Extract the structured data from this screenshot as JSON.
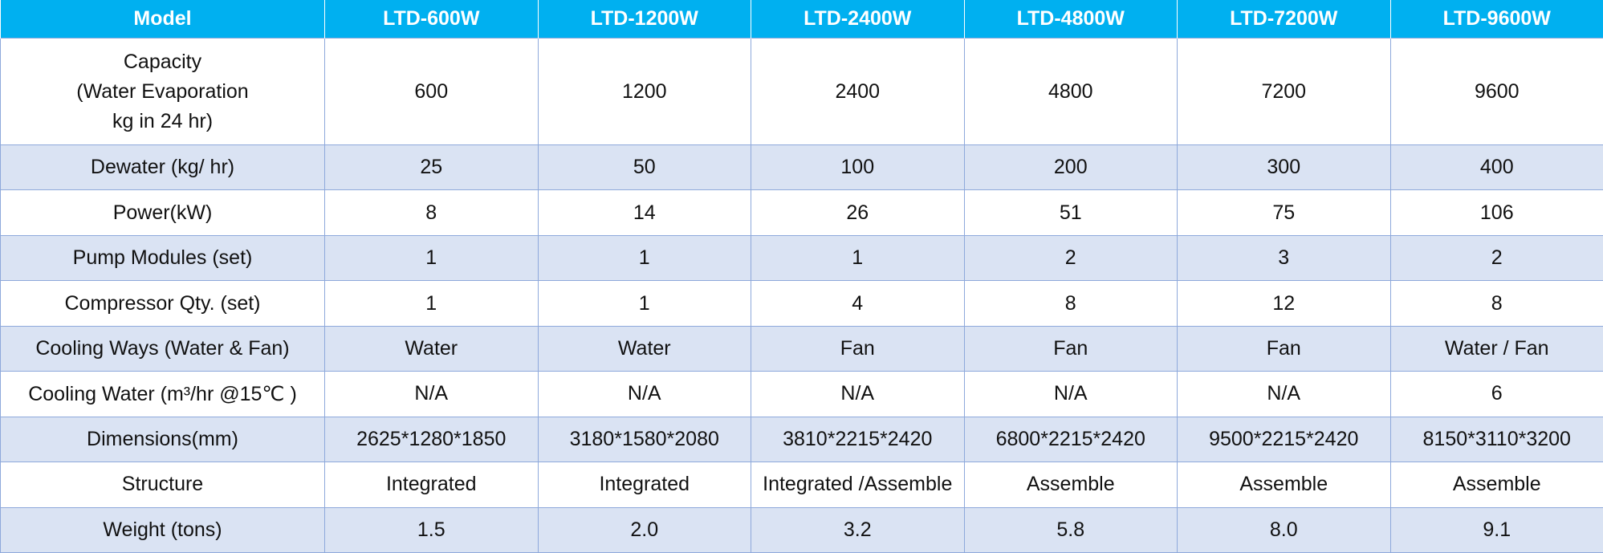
{
  "header": {
    "label": "Model",
    "models": [
      "LTD-600W",
      "LTD-1200W",
      "LTD-2400W",
      "LTD-4800W",
      "LTD-7200W",
      "LTD-9600W"
    ]
  },
  "rows": [
    {
      "label": "Capacity\n(Water Evaporation\nkg in 24 hr)",
      "values": [
        "600",
        "1200",
        "2400",
        "4800",
        "7200",
        "9600"
      ]
    },
    {
      "label": "Dewater (kg/ hr)",
      "values": [
        "25",
        "50",
        "100",
        "200",
        "300",
        "400"
      ]
    },
    {
      "label": "Power(kW)",
      "values": [
        "8",
        "14",
        "26",
        "51",
        "75",
        "106"
      ]
    },
    {
      "label": "Pump Modules (set)",
      "values": [
        "1",
        "1",
        "1",
        "2",
        "3",
        "2"
      ]
    },
    {
      "label": "Compressor Qty. (set)",
      "values": [
        "1",
        "1",
        "4",
        "8",
        "12",
        "8"
      ]
    },
    {
      "label": "Cooling Ways (Water & Fan)",
      "values": [
        "Water",
        "Water",
        "Fan",
        "Fan",
        "Fan",
        "Water / Fan"
      ]
    },
    {
      "label": "Cooling Water (m³/hr @15℃ )",
      "values": [
        "N/A",
        "N/A",
        "N/A",
        "N/A",
        "N/A",
        "6"
      ]
    },
    {
      "label": "Dimensions(mm)",
      "values": [
        "2625*1280*1850",
        "3180*1580*2080",
        "3810*2215*2420",
        "6800*2215*2420",
        "9500*2215*2420",
        "8150*3110*3200"
      ]
    },
    {
      "label": "Structure",
      "values": [
        "Integrated",
        "Integrated",
        "Integrated /Assemble",
        "Assemble",
        "Assemble",
        "Assemble"
      ]
    },
    {
      "label": "Weight (tons)",
      "values": [
        "1.5",
        "2.0",
        "3.2",
        "5.8",
        "8.0",
        "9.1"
      ]
    }
  ],
  "colors": {
    "header_bg": "#00b0f0",
    "header_text": "#ffffff",
    "row_shade": "#dae3f3",
    "row_plain": "#ffffff",
    "grid_line": "#8ea9db"
  }
}
